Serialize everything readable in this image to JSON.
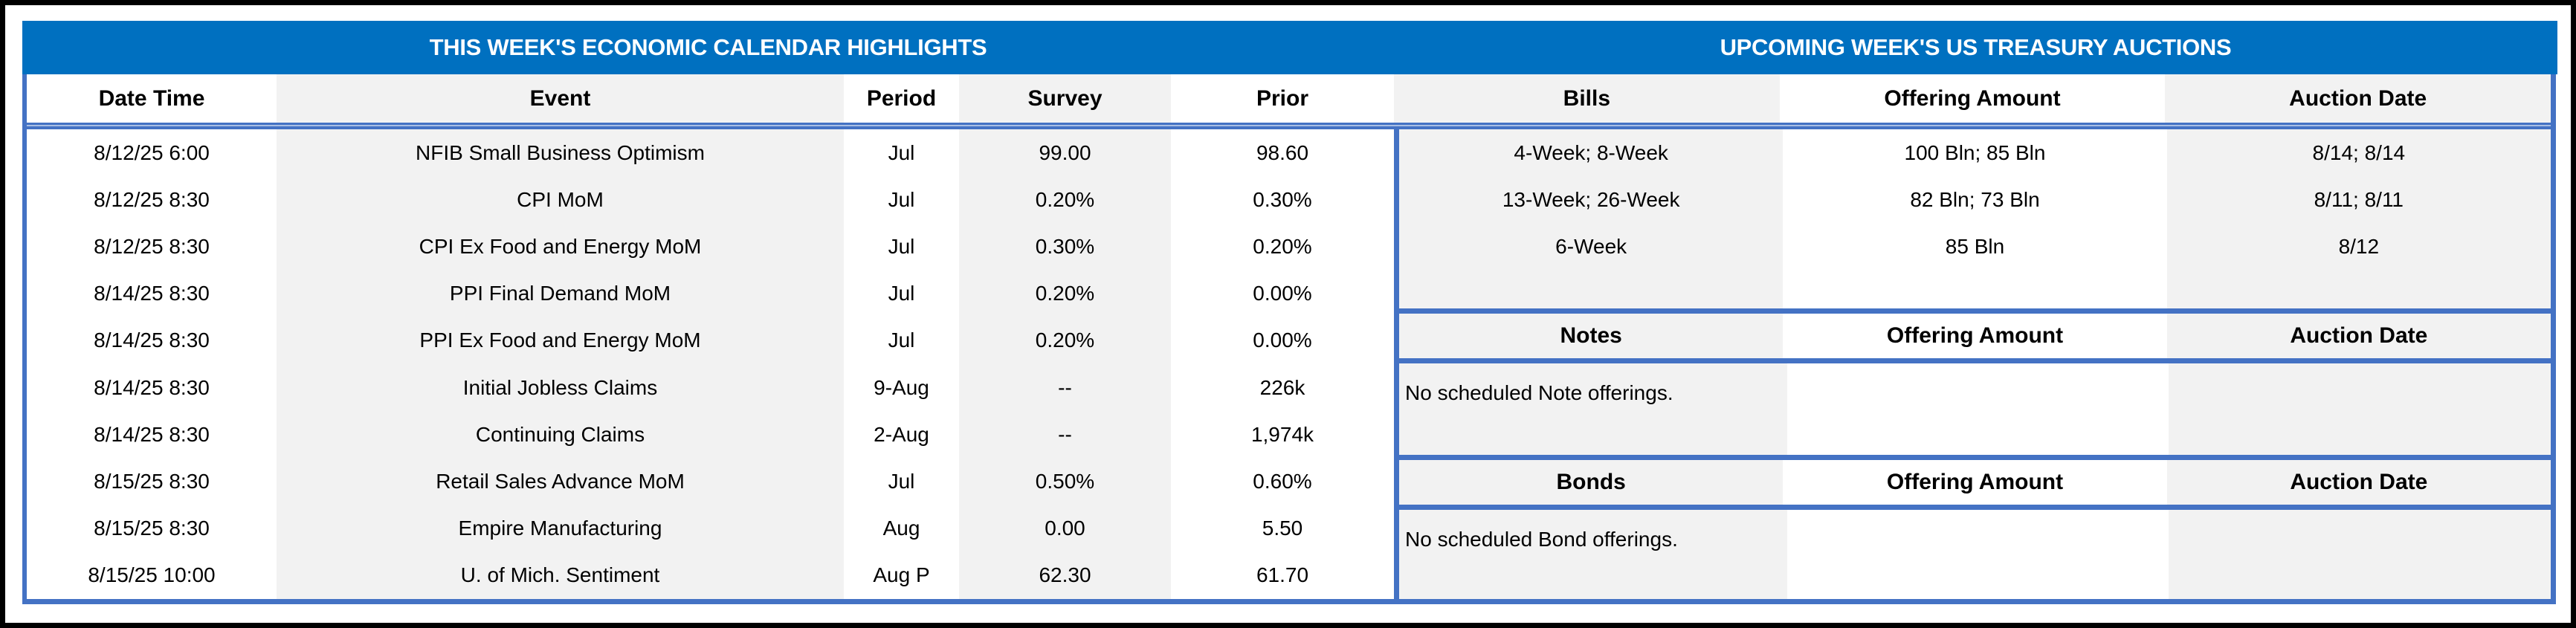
{
  "colors": {
    "header_blue": "#0070C0",
    "border_blue": "#4472C4",
    "border_light": "#A9BFE4",
    "shade_gray": "#F2F2F2",
    "frame_black": "#000000",
    "title_text": "#FFFFFF",
    "body_text": "#000000"
  },
  "economic_calendar": {
    "title": "THIS WEEK'S ECONOMIC CALENDAR HIGHLIGHTS",
    "columns": [
      "Date Time",
      "Event",
      "Period",
      "Survey",
      "Prior"
    ],
    "rows": [
      [
        "8/12/25 6:00",
        "NFIB Small Business Optimism",
        "Jul",
        "99.00",
        "98.60"
      ],
      [
        "8/12/25 8:30",
        "CPI MoM",
        "Jul",
        "0.20%",
        "0.30%"
      ],
      [
        "8/12/25 8:30",
        "CPI Ex Food and Energy MoM",
        "Jul",
        "0.30%",
        "0.20%"
      ],
      [
        "8/14/25 8:30",
        "PPI Final Demand MoM",
        "Jul",
        "0.20%",
        "0.00%"
      ],
      [
        "8/14/25 8:30",
        "PPI Ex Food and Energy MoM",
        "Jul",
        "0.20%",
        "0.00%"
      ],
      [
        "8/14/25 8:30",
        "Initial Jobless Claims",
        "9-Aug",
        "--",
        "226k"
      ],
      [
        "8/14/25 8:30",
        "Continuing Claims",
        "2-Aug",
        "--",
        "1,974k"
      ],
      [
        "8/15/25 8:30",
        "Retail Sales Advance MoM",
        "Jul",
        "0.50%",
        "0.60%"
      ],
      [
        "8/15/25 8:30",
        "Empire Manufacturing",
        "Aug",
        "0.00",
        "5.50"
      ],
      [
        "8/15/25 10:00",
        "U. of Mich. Sentiment",
        "Aug P",
        "62.30",
        "61.70"
      ]
    ]
  },
  "treasury_auctions": {
    "title": "UPCOMING WEEK'S US TREASURY AUCTIONS",
    "bills": {
      "columns": [
        "Bills",
        "Offering Amount",
        "Auction Date"
      ],
      "rows": [
        [
          "4-Week; 8-Week",
          "100 Bln; 85 Bln",
          "8/14; 8/14"
        ],
        [
          "13-Week; 26-Week",
          "82 Bln; 73 Bln",
          "8/11; 8/11"
        ],
        [
          "6-Week",
          "85 Bln",
          "8/12"
        ]
      ]
    },
    "notes": {
      "columns": [
        "Notes",
        "Offering Amount",
        "Auction Date"
      ],
      "message": "No scheduled Note offerings."
    },
    "bonds": {
      "columns": [
        "Bonds",
        "Offering Amount",
        "Auction Date"
      ],
      "message": "No scheduled Bond offerings."
    }
  }
}
